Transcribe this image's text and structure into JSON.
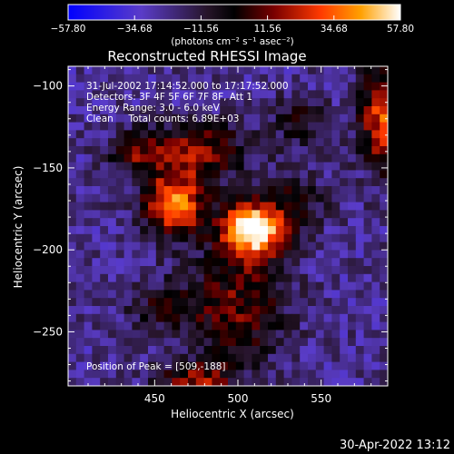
{
  "chart_data": {
    "type": "heatmap",
    "title": "Reconstructed RHESSI Image",
    "xlabel": "Heliocentric X (arcsec)",
    "ylabel": "Heliocentric Y (arcsec)",
    "xlim": [
      398,
      590
    ],
    "ylim": [
      -283,
      -88
    ],
    "x_ticks": [
      450,
      500,
      550
    ],
    "x_tick_labels": [
      "450",
      "500",
      "550"
    ],
    "y_ticks": [
      -100,
      -150,
      -200,
      -250
    ],
    "y_tick_labels": [
      "−100",
      "−150",
      "−200",
      "−250"
    ],
    "colorbar": {
      "range": [
        -57.8,
        57.8
      ],
      "ticks": [
        -57.8,
        -34.68,
        -11.56,
        11.56,
        34.68,
        57.8
      ],
      "tick_labels": [
        "−57.80",
        "−34.68",
        "−11.56",
        "11.56",
        "34.68",
        "57.80"
      ],
      "unit_label": "(photons cm⁻² s⁻¹ asec⁻²)"
    },
    "annotations": [
      "31-Jul-2002 17:14:52.000 to 17:17:52.000",
      "Detectors: 3F 4F 5F 6F 7F 8F, Att 1",
      "Energy Range: 3.0 - 6.0 keV",
      "Clean     Total counts: 6.89E+03",
      "Position of Peak = [509,-188]"
    ],
    "peak": {
      "x": 509,
      "y": -188,
      "value": 57.8
    },
    "sources": [
      {
        "x": 509,
        "y": -188,
        "sx": 14,
        "sy": 12,
        "amp": 85
      },
      {
        "x": 462,
        "y": -172,
        "sx": 13,
        "sy": 14,
        "amp": 62
      },
      {
        "x": 478,
        "y": -140,
        "sx": 20,
        "sy": 12,
        "amp": 38
      },
      {
        "x": 440,
        "y": -140,
        "sx": 12,
        "sy": 10,
        "amp": 30
      },
      {
        "x": 500,
        "y": -235,
        "sx": 20,
        "sy": 24,
        "amp": 34
      },
      {
        "x": 455,
        "y": -235,
        "sx": 16,
        "sy": 12,
        "amp": 20
      },
      {
        "x": 475,
        "y": -280,
        "sx": 16,
        "sy": 8,
        "amp": 38
      },
      {
        "x": 588,
        "y": -120,
        "sx": 10,
        "sy": 22,
        "amp": 55
      },
      {
        "x": 537,
        "y": -122,
        "sx": 12,
        "sy": 10,
        "amp": 22
      },
      {
        "x": 535,
        "y": -168,
        "sx": 14,
        "sy": 12,
        "amp": 20
      }
    ],
    "background": -24,
    "timestamp": "30-Apr-2022 13:12"
  }
}
